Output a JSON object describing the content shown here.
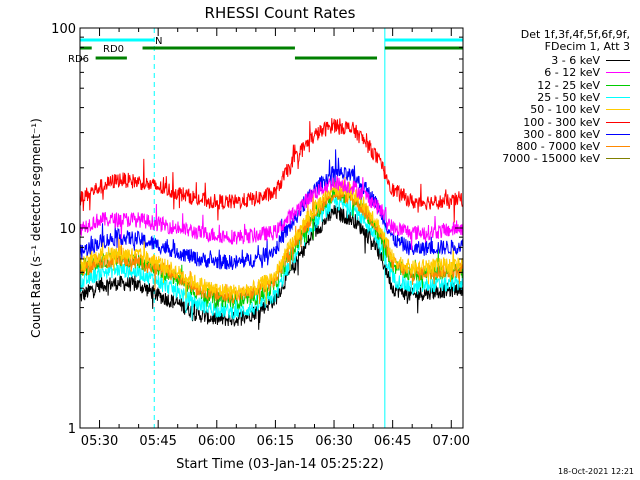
{
  "chart_data": {
    "type": "line",
    "title": "RHESSI Count Rates",
    "xlabel": "Start Time (03-Jan-14 05:25:22)",
    "ylabel": "Count Rate (s⁻¹ detector segment⁻¹)",
    "y_scale": "log",
    "ylim": [
      1,
      100
    ],
    "y_ticks": [
      "1",
      "10",
      "100"
    ],
    "x_range": [
      "05:25",
      "07:03"
    ],
    "x_ticks": [
      "05:30",
      "05:45",
      "06:00",
      "06:15",
      "06:30",
      "06:45",
      "07:00"
    ],
    "x": [
      "05:25",
      "05:30",
      "05:35",
      "05:40",
      "05:45",
      "05:50",
      "05:55",
      "06:00",
      "06:05",
      "06:10",
      "06:15",
      "06:20",
      "06:25",
      "06:30",
      "06:35",
      "06:40",
      "06:45",
      "06:50",
      "06:55",
      "07:00",
      "07:02"
    ],
    "series": [
      {
        "name": "3 - 6 keV",
        "color": "#000000",
        "values": [
          4.5,
          5.2,
          5.3,
          5.2,
          4.6,
          4.2,
          3.7,
          3.5,
          3.5,
          3.8,
          4.4,
          6.5,
          9.5,
          12.0,
          11.0,
          8.5,
          5.0,
          4.6,
          4.8,
          4.9,
          5.0
        ]
      },
      {
        "name": "6 - 12 keV",
        "color": "#ff00ff",
        "values": [
          10.0,
          11.0,
          11.0,
          11.0,
          10.5,
          10.0,
          9.5,
          9.2,
          9.0,
          9.2,
          9.5,
          12.0,
          15.0,
          17.0,
          16.0,
          13.5,
          10.0,
          9.5,
          9.5,
          9.8,
          10.0
        ]
      },
      {
        "name": "12 - 25 keV",
        "color": "#00cc00",
        "values": [
          6.0,
          6.8,
          7.0,
          6.8,
          6.2,
          5.5,
          4.8,
          4.4,
          4.3,
          4.5,
          5.2,
          8.0,
          11.5,
          15.0,
          14.0,
          10.5,
          6.5,
          5.8,
          6.0,
          6.0,
          6.1
        ]
      },
      {
        "name": "25 - 50 keV",
        "color": "#00ffff",
        "values": [
          5.2,
          6.0,
          6.2,
          6.0,
          5.4,
          4.8,
          4.2,
          3.9,
          3.8,
          4.0,
          4.6,
          7.2,
          10.5,
          13.5,
          12.5,
          9.5,
          5.6,
          5.0,
          5.2,
          5.2,
          5.3
        ]
      },
      {
        "name": "50 - 100 keV",
        "color": "#ffcc00",
        "values": [
          6.5,
          7.3,
          7.5,
          7.3,
          6.7,
          6.0,
          5.3,
          4.9,
          4.8,
          5.0,
          5.8,
          8.8,
          12.5,
          16.0,
          15.0,
          11.5,
          7.0,
          6.3,
          6.5,
          6.5,
          6.6
        ]
      },
      {
        "name": "100 - 300 keV",
        "color": "#ff0000",
        "values": [
          14.0,
          16.0,
          17.5,
          17.0,
          16.0,
          15.0,
          14.0,
          13.5,
          13.5,
          14.0,
          15.0,
          22.0,
          29.0,
          33.0,
          31.0,
          24.0,
          15.5,
          13.5,
          13.5,
          13.5,
          14.0
        ]
      },
      {
        "name": "300 - 800 keV",
        "color": "#0000ff",
        "values": [
          7.5,
          8.5,
          9.0,
          8.8,
          8.2,
          7.6,
          7.0,
          6.8,
          6.7,
          7.0,
          7.8,
          11.0,
          15.5,
          19.0,
          18.0,
          14.0,
          8.8,
          7.8,
          8.0,
          8.0,
          8.2
        ]
      },
      {
        "name": "800 - 7000 keV",
        "color": "#ff8800",
        "values": [
          6.0,
          6.8,
          7.0,
          6.8,
          6.3,
          5.7,
          5.0,
          4.6,
          4.6,
          4.8,
          5.5,
          8.4,
          12.0,
          15.0,
          14.0,
          10.8,
          6.6,
          5.9,
          6.1,
          6.1,
          6.2
        ]
      },
      {
        "name": "7000 - 15000 keV",
        "color": "#808000",
        "values": [
          null,
          null,
          null,
          null,
          null,
          null,
          null,
          null,
          null,
          null,
          null,
          null,
          null,
          null,
          null,
          null,
          null,
          null,
          null,
          null,
          null
        ]
      }
    ],
    "flag_bars": [
      {
        "label": "N",
        "color": "#00ffff",
        "segments": [
          [
            "05:25",
            "05:44"
          ],
          [
            "06:43",
            "07:03"
          ]
        ]
      },
      {
        "label": "RD0",
        "color": "#008000",
        "segments": [
          [
            "05:25",
            "05:28"
          ],
          [
            "05:41",
            "06:20"
          ],
          [
            "06:43",
            "07:03"
          ]
        ]
      },
      {
        "label": "RD6",
        "color": "#008000",
        "segments": [
          [
            "05:29",
            "05:37"
          ],
          [
            "06:20",
            "06:41"
          ]
        ]
      }
    ],
    "vertical_lines": [
      {
        "time": "05:25",
        "style": "solid",
        "color": "#00ffff"
      },
      {
        "time": "05:44",
        "style": "dashed",
        "color": "#00ffff"
      },
      {
        "time": "06:43",
        "style": "solid",
        "color": "#00ffff"
      },
      {
        "time": "07:03",
        "style": "dashed",
        "color": "#00ffff"
      }
    ],
    "legend_placement": "right",
    "legend_header": [
      "Det 1f,3f,4f,5f,6f,9f,",
      "FDecim 1, Att 3"
    ],
    "grid": false
  },
  "footer": {
    "date": "18-Oct-2021 12:21"
  }
}
